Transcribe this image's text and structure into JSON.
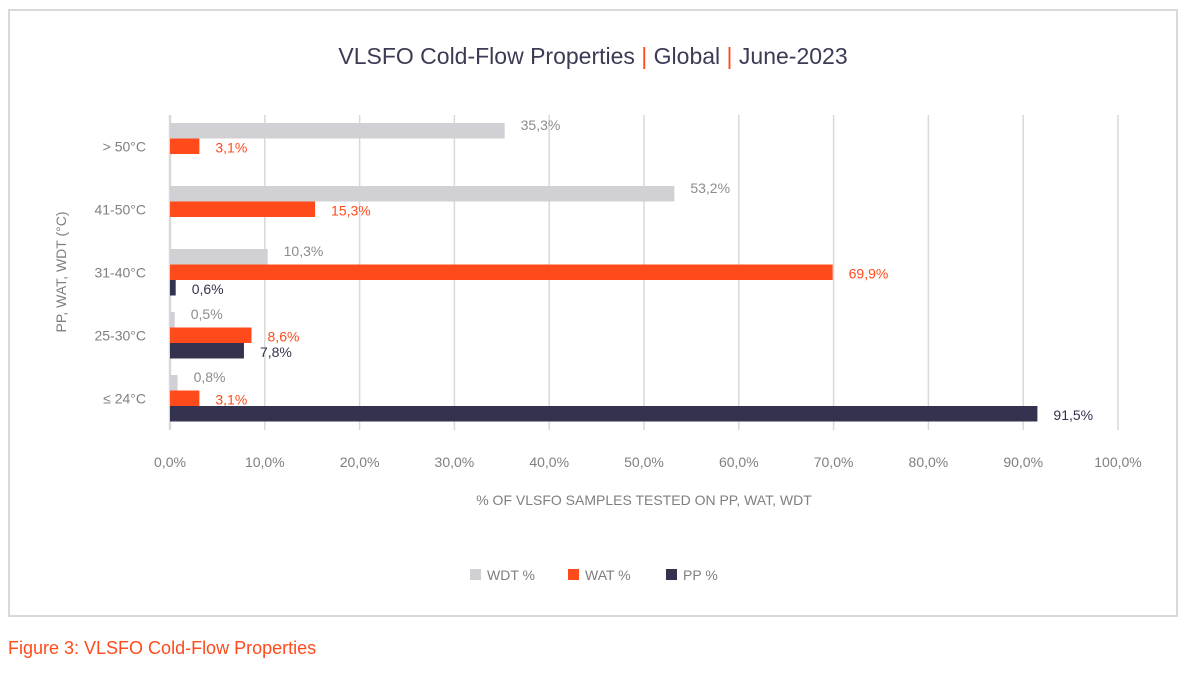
{
  "chart_data": {
    "type": "bar",
    "orientation": "horizontal",
    "title": {
      "main": "VLSFO Cold-Flow  Properties",
      "sep": "|",
      "region": "Global",
      "date": "June-2023"
    },
    "xlabel": "% OF VLSFO SAMPLES TESTED ON PP, WAT, WDT",
    "ylabel": "PP, WAT, WDT (°C)",
    "xlim": [
      0,
      100
    ],
    "xticks": [
      "0,0%",
      "10,0%",
      "20,0%",
      "30,0%",
      "40,0%",
      "50,0%",
      "60,0%",
      "70,0%",
      "80,0%",
      "90,0%",
      "100,0%"
    ],
    "grid": true,
    "legend_position": "bottom",
    "categories": [
      "> 50°C",
      "41-50°C",
      "31-40°C",
      "25-30°C",
      "≤ 24°C"
    ],
    "series": [
      {
        "name": "WDT %",
        "color": "#d0d0d5",
        "label_color": "#8c8c8c",
        "values": [
          35.3,
          53.2,
          10.3,
          0.5,
          0.8
        ],
        "labels": [
          "35,3%",
          "53,2%",
          "10,3%",
          "0,5%",
          "0,8%"
        ]
      },
      {
        "name": "WAT %",
        "color": "#ff4a1c",
        "label_color": "#ff4a1c",
        "values": [
          3.1,
          15.3,
          69.9,
          8.6,
          3.1
        ],
        "labels": [
          "3,1%",
          "15,3%",
          "69,9%",
          "8,6%",
          "3,1%"
        ]
      },
      {
        "name": "PP %",
        "color": "#33334f",
        "label_color": "#33334f",
        "values": [
          null,
          null,
          0.6,
          7.8,
          91.5
        ],
        "labels": [
          null,
          null,
          "0,6%",
          "7,8%",
          "91,5%"
        ]
      }
    ]
  },
  "caption": "Figure 3: VLSFO Cold-Flow Properties"
}
